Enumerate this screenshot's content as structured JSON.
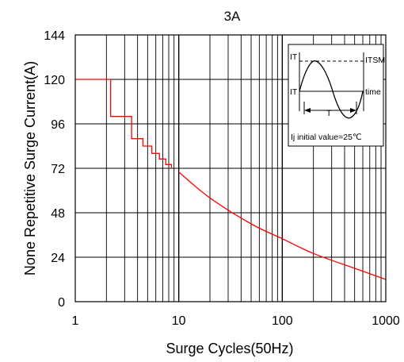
{
  "chart_data": {
    "type": "line",
    "title": "3A",
    "xlabel": "Surge Cycles(50Hz)",
    "ylabel": "None Repetitive Surge Current(A)",
    "x_scale": "log",
    "xlim": [
      1,
      1000
    ],
    "ylim": [
      0,
      144
    ],
    "x_ticks": [
      "1",
      "10",
      "100",
      "1000"
    ],
    "y_ticks": [
      "0",
      "24",
      "48",
      "72",
      "96",
      "120",
      "144"
    ],
    "grid": true,
    "series": [
      {
        "color": "#ff0000",
        "step_points": [
          [
            1,
            120
          ],
          [
            2.2,
            120
          ],
          [
            2.2,
            100
          ],
          [
            3.5,
            100
          ],
          [
            3.5,
            88
          ],
          [
            4.5,
            88
          ],
          [
            4.5,
            84
          ],
          [
            5.5,
            84
          ],
          [
            5.5,
            80
          ],
          [
            6.5,
            80
          ],
          [
            6.5,
            77
          ],
          [
            7.5,
            77
          ],
          [
            7.5,
            74
          ],
          [
            8.5,
            74
          ],
          [
            8.5,
            72
          ]
        ],
        "smooth_points": [
          [
            10,
            70
          ],
          [
            20,
            56
          ],
          [
            50,
            42
          ],
          [
            100,
            34
          ],
          [
            200,
            26
          ],
          [
            500,
            18
          ],
          [
            1000,
            12
          ]
        ]
      }
    ],
    "inset": {
      "label_it": "IT",
      "label_itsm": "ITSM",
      "label_it2": "IT",
      "label_time": "time",
      "label_period": "T",
      "note": "Ij initial value=25℃"
    }
  }
}
